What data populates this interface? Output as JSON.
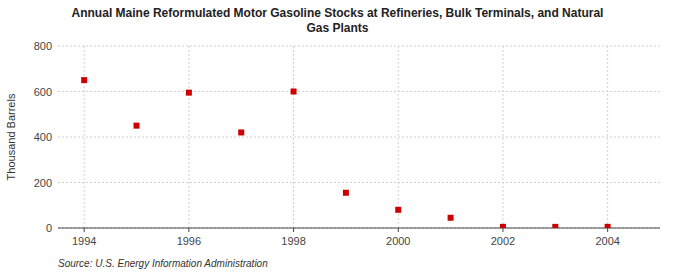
{
  "chart_data": {
    "type": "scatter",
    "title": "Annual Maine Reformulated Motor Gasoline Stocks at Refineries, Bulk Terminals, and Natural\nGas Plants",
    "y_label": "Thousand Barrels",
    "annotations": [
      "Source: U.S. Energy Information Administration"
    ],
    "x": [
      1994,
      1995,
      1996,
      1997,
      1998,
      1999,
      2000,
      2001,
      2002,
      2003,
      2004
    ],
    "values": [
      650,
      450,
      595,
      420,
      600,
      155,
      80,
      45,
      5,
      5,
      5
    ],
    "color": "#cc0000",
    "marker": "square",
    "xlim": [
      1993.5,
      2005.0
    ],
    "ylim": [
      0,
      800
    ],
    "xticks": [
      1994,
      1996,
      1998,
      2000,
      2002,
      2004
    ],
    "yticks": [
      0,
      200,
      400,
      600,
      800
    ],
    "grid": true
  }
}
